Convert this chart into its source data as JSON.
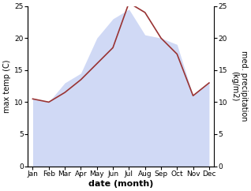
{
  "months": [
    "Jan",
    "Feb",
    "Mar",
    "Apr",
    "May",
    "Jun",
    "Jul",
    "Aug",
    "Sep",
    "Oct",
    "Nov",
    "Dec"
  ],
  "x": [
    0,
    1,
    2,
    3,
    4,
    5,
    6,
    7,
    8,
    9,
    10,
    11
  ],
  "temp": [
    10.5,
    10.0,
    11.5,
    13.5,
    16.0,
    18.5,
    25.5,
    24.0,
    20.0,
    17.5,
    11.0,
    13.0
  ],
  "precip": [
    10.5,
    10.0,
    13.0,
    14.5,
    20.0,
    23.0,
    24.5,
    20.5,
    20.0,
    19.0,
    11.0,
    13.0
  ],
  "temp_color": "#993333",
  "fill_color": "#aabbee",
  "fill_alpha": 0.55,
  "xlabel": "date (month)",
  "ylabel_left": "max temp (C)",
  "ylabel_right": "med. precipitation\n(kg/m2)",
  "ylim": [
    0,
    25
  ],
  "yticks": [
    0,
    5,
    10,
    15,
    20,
    25
  ],
  "bg_color": "#ffffff"
}
